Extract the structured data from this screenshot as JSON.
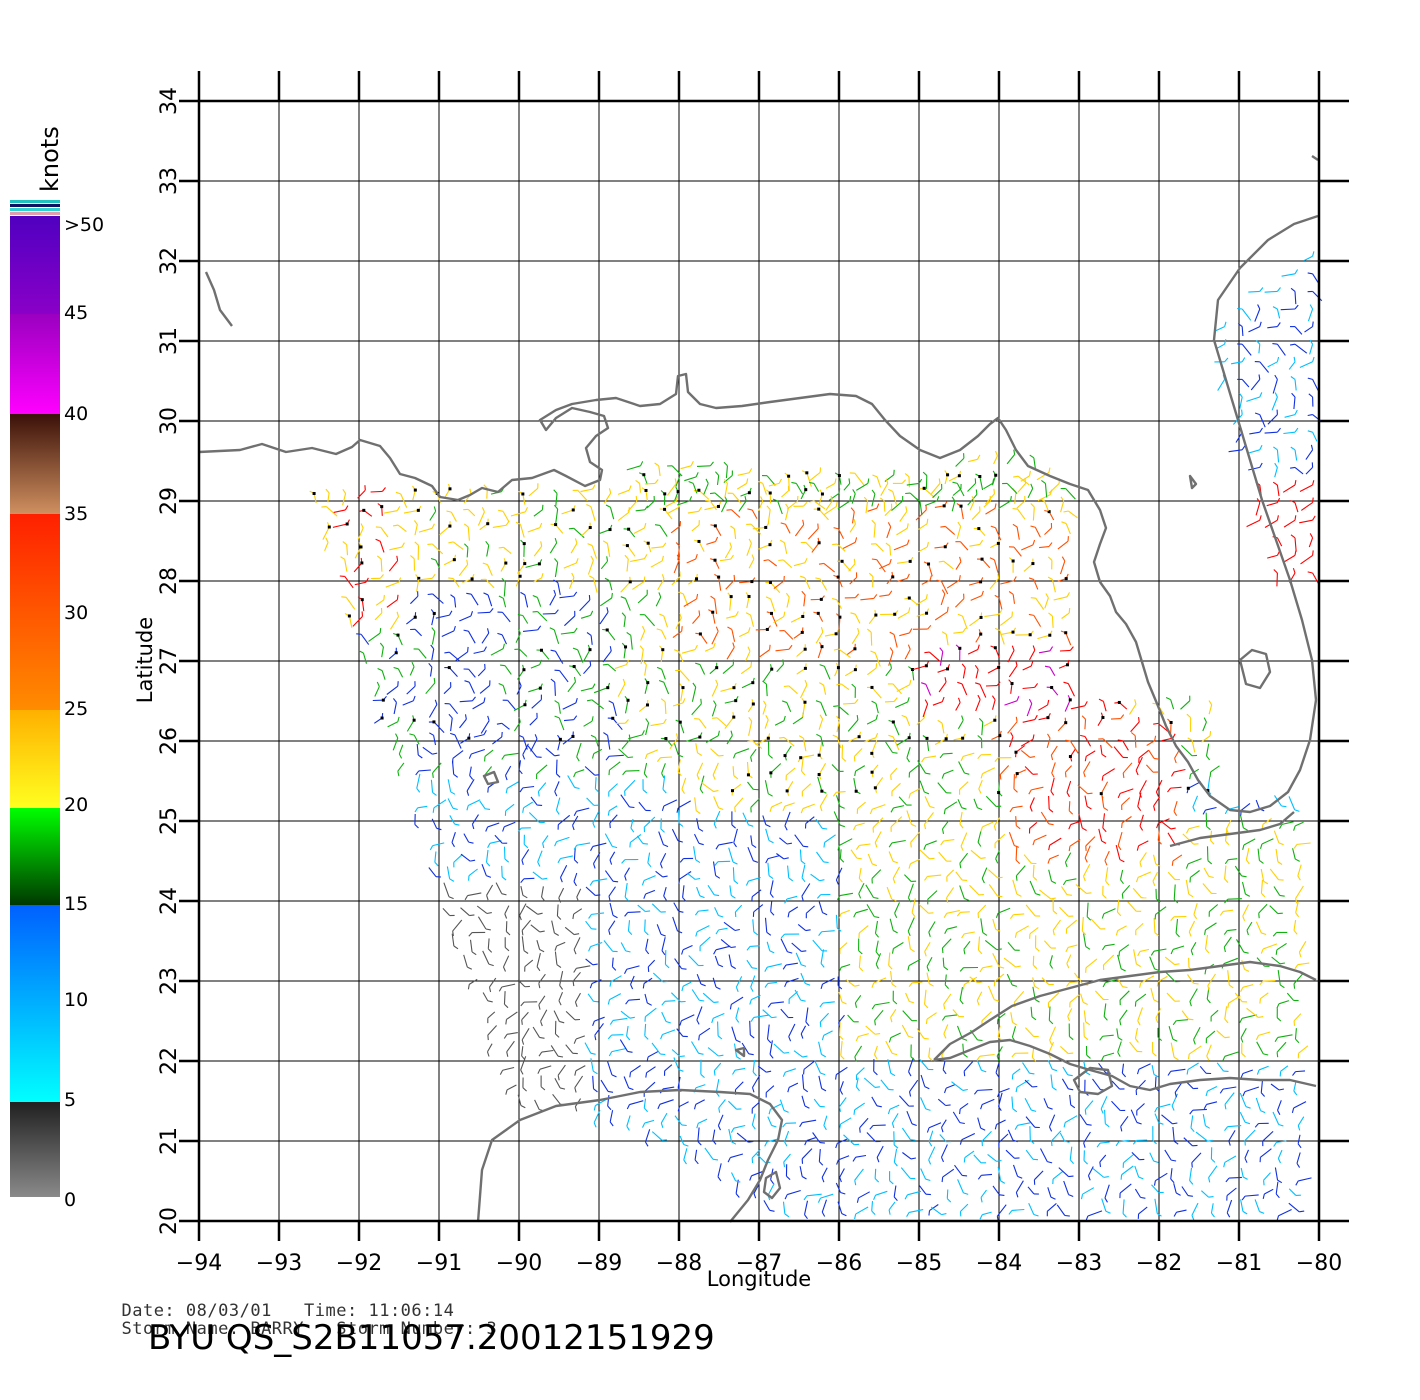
{
  "axes": {
    "xlabel": "Longitude",
    "ylabel": "Latitude",
    "lon_ticks": [
      "−94",
      "−93",
      "−92",
      "−91",
      "−90",
      "−89",
      "−88",
      "−87",
      "−86",
      "−85",
      "−84",
      "−83",
      "−82",
      "−81",
      "−80"
    ],
    "lat_ticks": [
      "20",
      "21",
      "22",
      "23",
      "24",
      "25",
      "26",
      "27",
      "28",
      "29",
      "30",
      "31",
      "32",
      "33",
      "34"
    ],
    "lon_range": [
      -94,
      -80
    ],
    "lat_range": [
      20,
      34
    ]
  },
  "legend": {
    "unit": "knots",
    "labels": [
      "0",
      "5",
      "10",
      "15",
      "20",
      "25",
      "30",
      "35",
      "40",
      "45",
      ">50"
    ],
    "colors": {
      "calm": "#555555",
      "light": "#00bfff",
      "moderate": "#1030e0",
      "fresh": "#10b010",
      "strong": "#ffd000",
      "gale": "#ff5000",
      "storm": "#ff0000",
      "violent": "#a0522d",
      "extreme": "#cc00cc",
      "over": "#6a00d0",
      "coast": "#707070"
    }
  },
  "footer": {
    "date_label": "Date:",
    "date_value": "08/03/01",
    "time_label": "Time:",
    "time_value": "11:06:14",
    "storm_name_label": "Storm Name:",
    "storm_name_value": "BARRY",
    "storm_number_label": "Storm Number:",
    "storm_number_value": "3",
    "product_title": "BYU  QS_S2B11057.20012151929"
  }
}
